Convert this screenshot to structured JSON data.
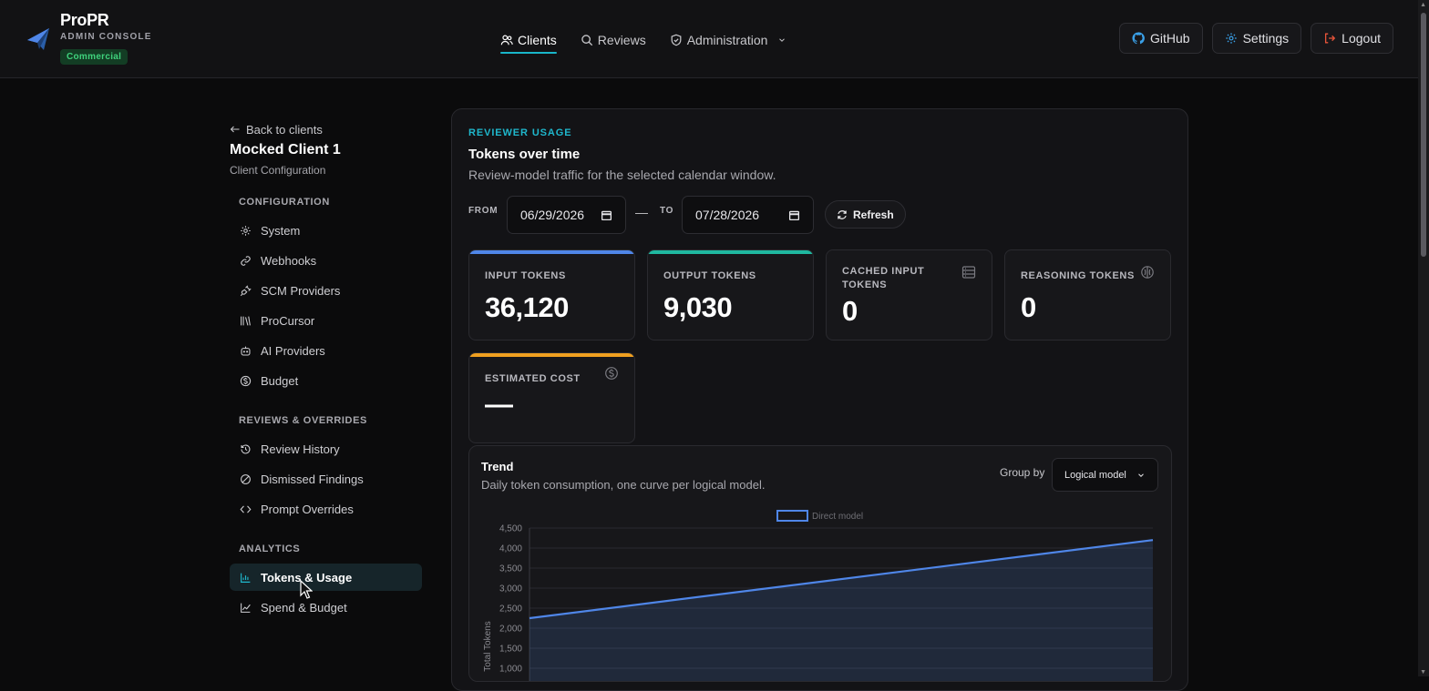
{
  "brand": {
    "name": "ProPR",
    "subtitle": "ADMIN CONSOLE",
    "badge": "Commercial"
  },
  "nav": {
    "items": [
      {
        "label": "Clients",
        "icon": "users-icon",
        "active": true
      },
      {
        "label": "Reviews",
        "icon": "search-icon",
        "active": false
      },
      {
        "label": "Administration",
        "icon": "shield-icon",
        "active": false,
        "dropdown": true
      }
    ]
  },
  "top_actions": {
    "github": "GitHub",
    "settings": "Settings",
    "logout": "Logout"
  },
  "sidebar": {
    "back": "Back to clients",
    "client_name": "Mocked Client 1",
    "client_sub": "Client Configuration",
    "sections": [
      {
        "title": "CONFIGURATION",
        "items": [
          {
            "label": "System",
            "icon": "gear-icon"
          },
          {
            "label": "Webhooks",
            "icon": "link-icon"
          },
          {
            "label": "SCM Providers",
            "icon": "plug-icon"
          },
          {
            "label": "ProCursor",
            "icon": "library-icon"
          },
          {
            "label": "AI Providers",
            "icon": "bot-icon"
          },
          {
            "label": "Budget",
            "icon": "dollar-icon"
          }
        ]
      },
      {
        "title": "REVIEWS & OVERRIDES",
        "items": [
          {
            "label": "Review History",
            "icon": "history-icon"
          },
          {
            "label": "Dismissed Findings",
            "icon": "ban-icon"
          },
          {
            "label": "Prompt Overrides",
            "icon": "code-icon"
          }
        ]
      },
      {
        "title": "ANALYTICS",
        "items": [
          {
            "label": "Tokens & Usage",
            "icon": "bar-chart-icon",
            "active": true
          },
          {
            "label": "Spend & Budget",
            "icon": "trend-icon"
          }
        ]
      }
    ]
  },
  "panel": {
    "eyebrow": "REVIEWER USAGE",
    "title": "Tokens over time",
    "subtitle": "Review-model traffic for the selected calendar window.",
    "from_label": "FROM",
    "to_label": "TO",
    "from_value": "06/29/2026",
    "to_value": "07/28/2026",
    "refresh": "Refresh"
  },
  "stats": [
    {
      "label": "INPUT TOKENS",
      "value": "36,120",
      "accent": "#4f86e8"
    },
    {
      "label": "OUTPUT TOKENS",
      "value": "9,030",
      "accent": "#1fb8a0"
    },
    {
      "label": "CACHED INPUT TOKENS",
      "value": "0",
      "icon": "database-icon"
    },
    {
      "label": "REASONING TOKENS",
      "value": "0",
      "icon": "brain-icon"
    },
    {
      "label": "ESTIMATED COST",
      "value": "—",
      "accent": "#f0a020",
      "icon": "dollar-circle-icon"
    }
  ],
  "trend": {
    "title": "Trend",
    "subtitle": "Daily token consumption, one curve per logical model.",
    "group_by_label": "Group by",
    "group_by_value": "Logical model"
  },
  "chart_data": {
    "type": "area",
    "ylabel": "Total Tokens",
    "ylim": [
      1000,
      4500
    ],
    "yticks": [
      "4,500",
      "4,000",
      "3,500",
      "3,000",
      "2,500",
      "2,000",
      "1,500",
      "1,000"
    ],
    "grid": true,
    "legend": "top-center",
    "series": [
      {
        "name": "Direct model",
        "color": "#4f86e8",
        "start": 2250,
        "end": 4200
      }
    ]
  }
}
